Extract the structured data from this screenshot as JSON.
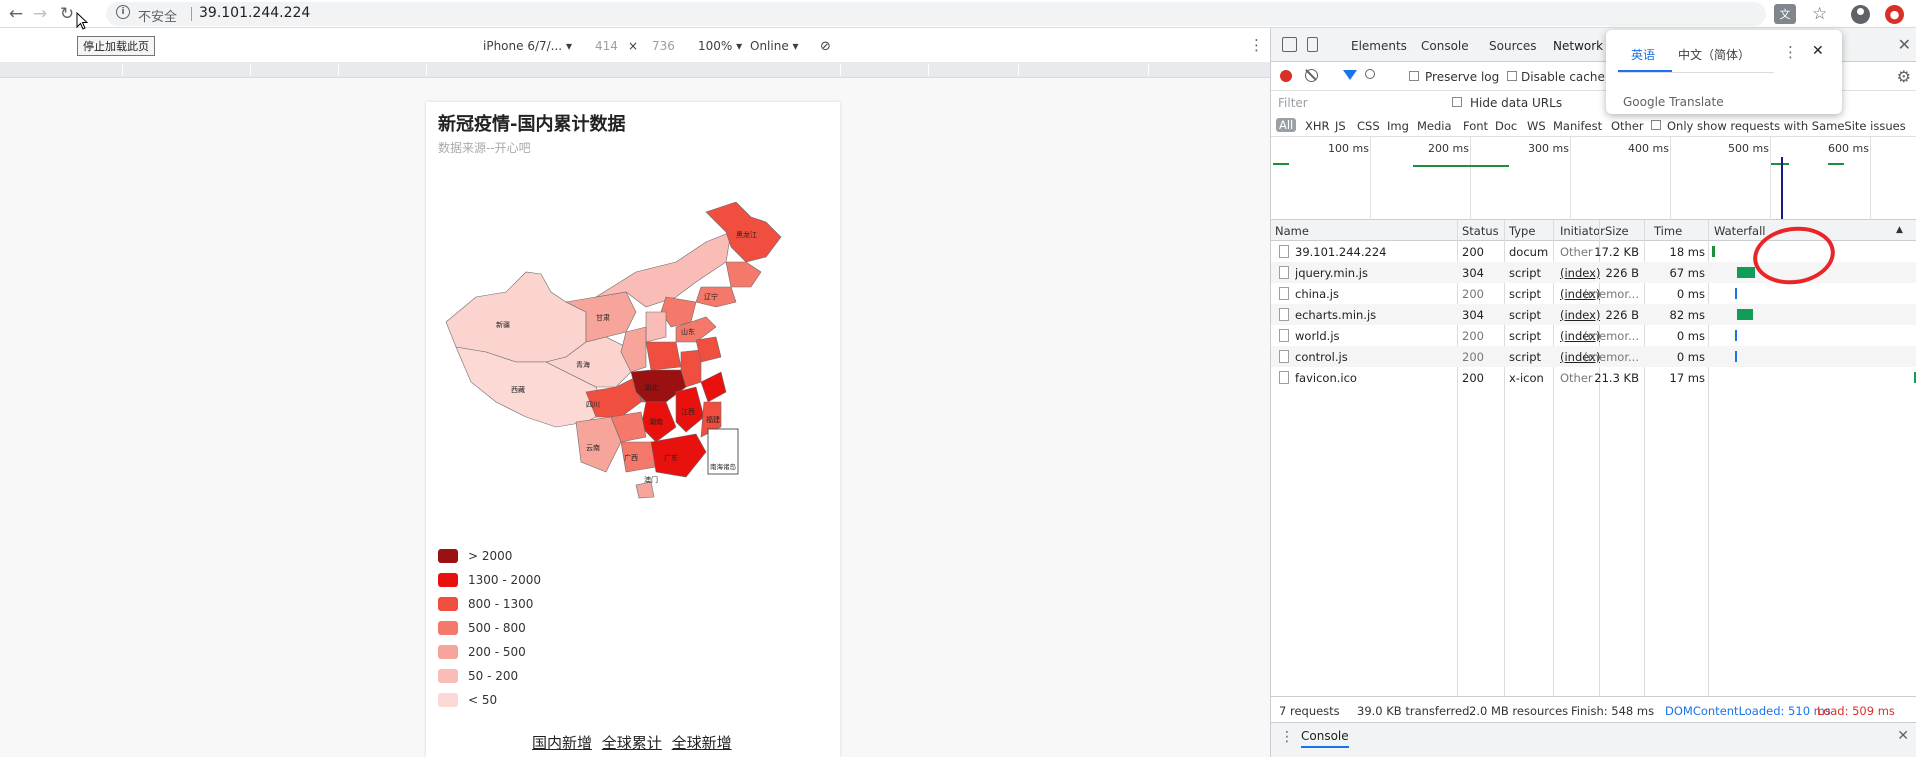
{
  "browser": {
    "security_label": "不安全",
    "url": "39.101.244.224",
    "tooltip": "停止加载此页",
    "translate_badge": "文"
  },
  "device_toolbar": {
    "device": "iPhone 6/7/...",
    "width": "414",
    "times": "×",
    "height": "736",
    "zoom": "100%",
    "network": "Online"
  },
  "page": {
    "title": "新冠疫情-国内累计数据",
    "subtitle": "数据来源--开心吧",
    "map_labels": [
      "新疆",
      "西藏",
      "青海",
      "甘肃",
      "四川",
      "云南",
      "广西",
      "广东",
      "湖北",
      "黑龙江",
      "湖南",
      "江西",
      "福建",
      "澳门",
      "山东",
      "辽宁",
      "南海诸岛"
    ],
    "legend": [
      {
        "label": "> 2000",
        "color": "#9b1111"
      },
      {
        "label": "1300 - 2000",
        "color": "#e9110e"
      },
      {
        "label": "800 - 1300",
        "color": "#f04e3e"
      },
      {
        "label": "500 - 800",
        "color": "#f4796b"
      },
      {
        "label": "200 - 500",
        "color": "#f7a49a"
      },
      {
        "label": "50 - 200",
        "color": "#f9bcb6"
      },
      {
        "label": "< 50",
        "color": "#fcd9d5"
      }
    ],
    "links": [
      "国内新增",
      "全球累计",
      "全球新增"
    ]
  },
  "devtools": {
    "tabs": [
      "Elements",
      "Console",
      "Sources",
      "Network"
    ],
    "toolbar": {
      "preserve_log": "Preserve log",
      "disable_cache": "Disable cache"
    },
    "filter_placeholder": "Filter",
    "hide_data_urls": "Hide data URLs",
    "types": [
      "All",
      "XHR",
      "JS",
      "CSS",
      "Img",
      "Media",
      "Font",
      "Doc",
      "WS",
      "Manifest",
      "Other"
    ],
    "samesite": "Only show requests with SameSite issues",
    "overview_ticks": [
      "100 ms",
      "200 ms",
      "300 ms",
      "400 ms",
      "500 ms",
      "600 ms"
    ],
    "columns": [
      "Name",
      "Status",
      "Type",
      "Initiator",
      "Size",
      "Time",
      "Waterfall"
    ],
    "requests": [
      {
        "name": "39.101.244.224",
        "status": "200",
        "type": "docum...",
        "initiator": "Other",
        "size": "17.2 KB",
        "time": "18 ms",
        "bar_color": "#1e8e3e"
      },
      {
        "name": "jquery.min.js",
        "status": "304",
        "type": "script",
        "initiator": "(index)",
        "size": "226 B",
        "time": "67 ms",
        "bar_color": "#0f9d58"
      },
      {
        "name": "china.js",
        "status": "200",
        "type": "script",
        "initiator": "(index)",
        "size": "(memor...",
        "time": "0 ms",
        "bar_color": "#1a73e8"
      },
      {
        "name": "echarts.min.js",
        "status": "304",
        "type": "script",
        "initiator": "(index)",
        "size": "226 B",
        "time": "82 ms",
        "bar_color": "#0f9d58"
      },
      {
        "name": "world.js",
        "status": "200",
        "type": "script",
        "initiator": "(index)",
        "size": "(memor...",
        "time": "0 ms",
        "bar_color": "#1a73e8"
      },
      {
        "name": "control.js",
        "status": "200",
        "type": "script",
        "initiator": "(index)",
        "size": "(memor...",
        "time": "0 ms",
        "bar_color": "#1a73e8"
      },
      {
        "name": "favicon.ico",
        "status": "200",
        "type": "x-icon",
        "initiator": "Other",
        "size": "21.3 KB",
        "time": "17 ms",
        "bar_color": "#0f9d58"
      }
    ],
    "status_bar": {
      "requests": "7 requests",
      "transferred": "39.0 KB transferred",
      "resources": "2.0 MB resources",
      "finish": "Finish: 548 ms",
      "dcl": "DOMContentLoaded: 510 ms",
      "load": "Load: 509 ms"
    },
    "drawer_tab": "Console"
  },
  "translate_popup": {
    "lang_en": "英语",
    "lang_zh": "中文（简体）",
    "brand": "Google Translate"
  }
}
